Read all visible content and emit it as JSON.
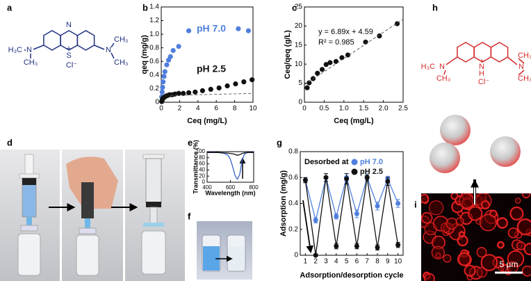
{
  "panel_letters": {
    "a": "a",
    "d": "d",
    "f": "f",
    "h": "h",
    "i": "i"
  },
  "molecule_a": {
    "labels": [
      "N",
      "S",
      "+",
      "Cl⁻",
      "H₃C",
      "N",
      "CH₃",
      "N",
      "CH₃",
      "CH₃"
    ]
  },
  "molecule_h": {
    "labels": [
      "+",
      "N",
      "H",
      "Cl⁻",
      "H₃C",
      "N",
      "CH₃",
      "N",
      "CH₃",
      "CH₃"
    ]
  },
  "scale_bar": "5 µm",
  "chart_data": [
    {
      "type": "scatter",
      "panel": "b",
      "xlabel": "Ceq (mg/L)",
      "ylabel": "qeq (mg/g)",
      "xlim": [
        0,
        10
      ],
      "xticks": [
        0,
        2,
        4,
        6,
        8,
        10
      ],
      "ylim": [
        0,
        1.4
      ],
      "yticks": [
        0,
        0.2,
        0.4,
        0.6,
        0.8,
        {
          "value": 1,
          "label": "1.0"
        },
        1.2,
        1.4
      ],
      "series": [
        {
          "name": "pH 7.0",
          "color": "#4f7fde",
          "x": [
            0.05,
            0.1,
            0.15,
            0.2,
            0.3,
            0.4,
            0.6,
            0.8,
            1.0,
            1.3,
            1.9,
            3.0,
            8.4,
            9.5
          ],
          "values": [
            0.08,
            0.15,
            0.22,
            0.3,
            0.38,
            0.45,
            0.55,
            0.62,
            0.67,
            0.76,
            0.82,
            1.05,
            1.08,
            1.05
          ]
        },
        {
          "name": "pH 2.5",
          "color": "#111111",
          "x": [
            0.05,
            0.1,
            0.15,
            0.2,
            0.3,
            0.4,
            0.5,
            0.7,
            0.9,
            1.2,
            1.5,
            1.9,
            2.4,
            3.0,
            3.7,
            4.5,
            5.4,
            6.3,
            7.2,
            8.1,
            9.0,
            9.9
          ],
          "values": [
            0.01,
            0.03,
            0.05,
            0.06,
            0.07,
            0.08,
            0.09,
            0.1,
            0.11,
            0.11,
            0.12,
            0.13,
            0.13,
            0.14,
            0.15,
            0.17,
            0.19,
            0.21,
            0.24,
            0.27,
            0.3,
            0.33
          ]
        },
        {
          "color": "#666666",
          "style": "dashed",
          "x": [
            1,
            10
          ],
          "values": [
            0.1,
            0.13
          ]
        }
      ]
    },
    {
      "type": "scatter",
      "panel": "c",
      "xlabel": "Ceq (mg/L)",
      "ylabel": "Ceq/qeq (g/L)",
      "annotations": [
        "y = 6.89x + 4.59",
        "R² = 0.985"
      ],
      "xlim": [
        0,
        2.5
      ],
      "xticks": [
        0,
        0.5,
        {
          "value": 1,
          "label": "1.0"
        },
        1.5,
        {
          "value": 2,
          "label": "2.0"
        },
        2.5
      ],
      "ylim": [
        0,
        25
      ],
      "yticks": [
        0,
        5,
        10,
        15,
        20,
        25
      ],
      "series": [
        {
          "color": "#111111",
          "x": [
            0.07,
            0.12,
            0.22,
            0.33,
            0.45,
            0.55,
            0.65,
            0.8,
            0.95,
            1.1,
            1.55,
            1.9,
            2.35
          ],
          "values": [
            3.8,
            5.1,
            6.2,
            7.6,
            8.6,
            9.9,
            10.4,
            10.7,
            11.7,
            12.4,
            15.8,
            17.4,
            20.6
          ]
        },
        {
          "color": "#555555",
          "style": "dashed",
          "x": [
            0,
            2.5
          ],
          "values": [
            4.59,
            21.8
          ]
        }
      ]
    },
    {
      "type": "line",
      "panel": "e",
      "xlabel": "Wavelength (nm)",
      "ylabel": "Transmittance (%)",
      "xlim": [
        400,
        800
      ],
      "xticks": [
        400,
        600,
        800
      ],
      "ylim": [
        0,
        100
      ],
      "yticks": [
        0,
        20,
        40,
        60,
        80,
        100
      ],
      "x": [
        400,
        450,
        500,
        550,
        580,
        600,
        620,
        640,
        660,
        680,
        700,
        720,
        750,
        800
      ],
      "series": [
        {
          "color": "#3a62c8",
          "values": [
            98,
            98,
            97,
            94,
            88,
            75,
            50,
            22,
            10,
            25,
            70,
            92,
            98,
            98
          ]
        },
        {
          "color": "#111111",
          "values": [
            97,
            97,
            97,
            96,
            95,
            94,
            93,
            91,
            88,
            90,
            94,
            96,
            97,
            97
          ]
        }
      ]
    },
    {
      "type": "line",
      "panel": "g",
      "xlabel": "Adsorption/desorption cycle",
      "ylabel": "Adsorption (mg/g)",
      "legend_title": "Desorbed at",
      "legend": "upper left",
      "markers": true,
      "xlim": [
        0.5,
        10.5
      ],
      "xticks": [
        1,
        2,
        3,
        4,
        5,
        6,
        7,
        8,
        9,
        10
      ],
      "ylim": [
        0,
        0.8
      ],
      "yticks": [
        0,
        0.2,
        0.4,
        0.6,
        0.8
      ],
      "x": [
        1,
        2,
        3,
        4,
        5,
        6,
        7,
        8,
        9,
        10
      ],
      "series": [
        {
          "name": "pH 7.0",
          "color": "#4f7fde",
          "values": [
            0.58,
            0.27,
            0.6,
            0.3,
            0.6,
            0.32,
            0.6,
            0.38,
            0.59,
            0.4
          ],
          "errors": [
            0.02,
            0.02,
            0.03,
            0.02,
            0.03,
            0.03,
            0.03,
            0.03,
            0.02,
            0.03
          ]
        },
        {
          "name": "pH 2.5",
          "color": "#111111",
          "values": [
            0.58,
            0.0,
            0.6,
            0.07,
            0.59,
            0.07,
            0.6,
            0.06,
            0.57,
            0.08
          ],
          "errors": [
            0.02,
            0.01,
            0.03,
            0.02,
            0.04,
            0.02,
            0.02,
            0.02,
            0.03,
            0.02
          ]
        }
      ]
    }
  ]
}
